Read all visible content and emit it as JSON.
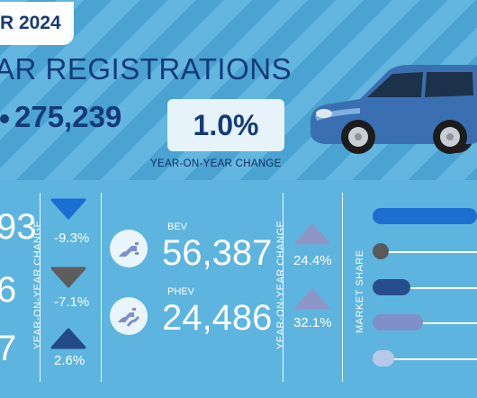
{
  "header": {
    "period_label": "R 2024",
    "title": "AR REGISTRATIONS",
    "total": "275,239",
    "yoy_change": "1.0%",
    "yoy_label": "YEAR-ON-YEAR CHANGE"
  },
  "fuel_left": {
    "values": [
      "93",
      "6",
      "7"
    ],
    "changes": [
      "-9.3%",
      "-7.1%",
      "2.6%"
    ],
    "axis_label": "YEAR-ON-YEAR CHANGE"
  },
  "fuel_right": {
    "bev": {
      "label": "BEV",
      "value": "56,387",
      "change": "24.4%"
    },
    "phev": {
      "label": "PHEV",
      "value": "24,486",
      "change": "32.1%"
    },
    "axis_label": "YEAR-ON-YEAR CHANGE"
  },
  "market_share": {
    "label": "MARKET SHARE",
    "colors": [
      "#1d6fcf",
      "#5a5a5a",
      "#264e8e",
      "#7f8fc7",
      "#b8c8e8"
    ]
  },
  "colors": {
    "navy": "#153a78",
    "down_blue": "#1a6fd1",
    "down_grey": "#5d5d5d",
    "up_navy": "#244a86",
    "up_lilac": "#8c97c8"
  }
}
